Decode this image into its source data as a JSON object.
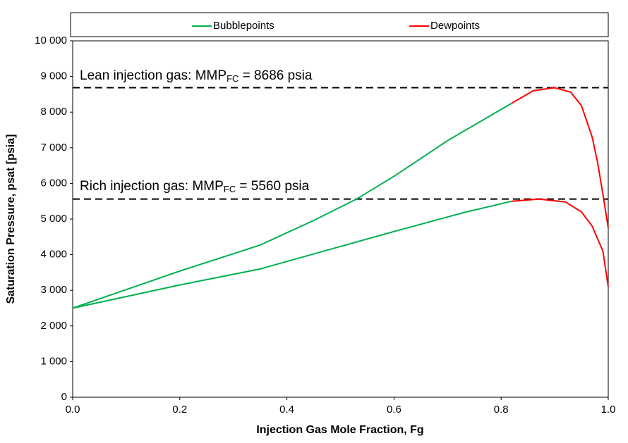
{
  "chart_data": {
    "type": "line",
    "x_label": "Injection Gas Mole Fraction, Fg",
    "y_label": "Saturation Pressure, psat [psia]",
    "xlim": [
      0,
      1
    ],
    "ylim": [
      0,
      10000
    ],
    "xticks": [
      {
        "value": 0,
        "label": "0.0"
      },
      0.2,
      0.4,
      0.6,
      0.8,
      {
        "value": 1,
        "label": "1.0"
      }
    ],
    "yticks": [
      0,
      {
        "value": 1000,
        "label": "1 000"
      },
      {
        "value": 2000,
        "label": "2 000"
      },
      {
        "value": 3000,
        "label": "3 000"
      },
      {
        "value": 4000,
        "label": "4 000"
      },
      {
        "value": 5000,
        "label": "5 000"
      },
      {
        "value": 6000,
        "label": "6 000"
      },
      {
        "value": 7000,
        "label": "7 000"
      },
      {
        "value": 8000,
        "label": "8 000"
      },
      {
        "value": 9000,
        "label": "9 000"
      },
      {
        "value": 10000,
        "label": "10 000"
      }
    ],
    "grid": false,
    "legend": "top",
    "series": [
      {
        "name": "Bubblepoints",
        "color": "#00b050",
        "x": [
          0,
          0.1,
          0.2,
          0.35,
          0.45,
          0.53,
          0.6,
          0.7,
          0.82,
          null,
          0,
          0.2,
          0.35,
          0.5,
          0.6,
          0.73,
          0.82
        ],
        "values": [
          2500,
          3020,
          3540,
          4270,
          4960,
          5560,
          6200,
          7200,
          8250,
          null,
          2500,
          3150,
          3600,
          4230,
          4650,
          5180,
          5500
        ]
      },
      {
        "name": "Dewpoints",
        "color": "#ff0000",
        "x": [
          0.82,
          0.86,
          0.9,
          0.93,
          0.95,
          0.97,
          0.98,
          0.99,
          1,
          null,
          0.82,
          0.87,
          0.92,
          0.95,
          0.97,
          0.99,
          1
        ],
        "values": [
          8250,
          8600,
          8686,
          8560,
          8180,
          7300,
          6600,
          5700,
          4750,
          null,
          5500,
          5560,
          5480,
          5200,
          4800,
          4100,
          3100
        ]
      }
    ],
    "annotations": [
      {
        "text": "Lean injection gas: MMP",
        "subscript": "FC",
        "text_after": " = 8686 psia",
        "value": 8686
      },
      {
        "text": "Rich injection gas: MMP",
        "subscript": "FC",
        "text_after": " = 5560 psia",
        "value": 5560
      }
    ]
  }
}
